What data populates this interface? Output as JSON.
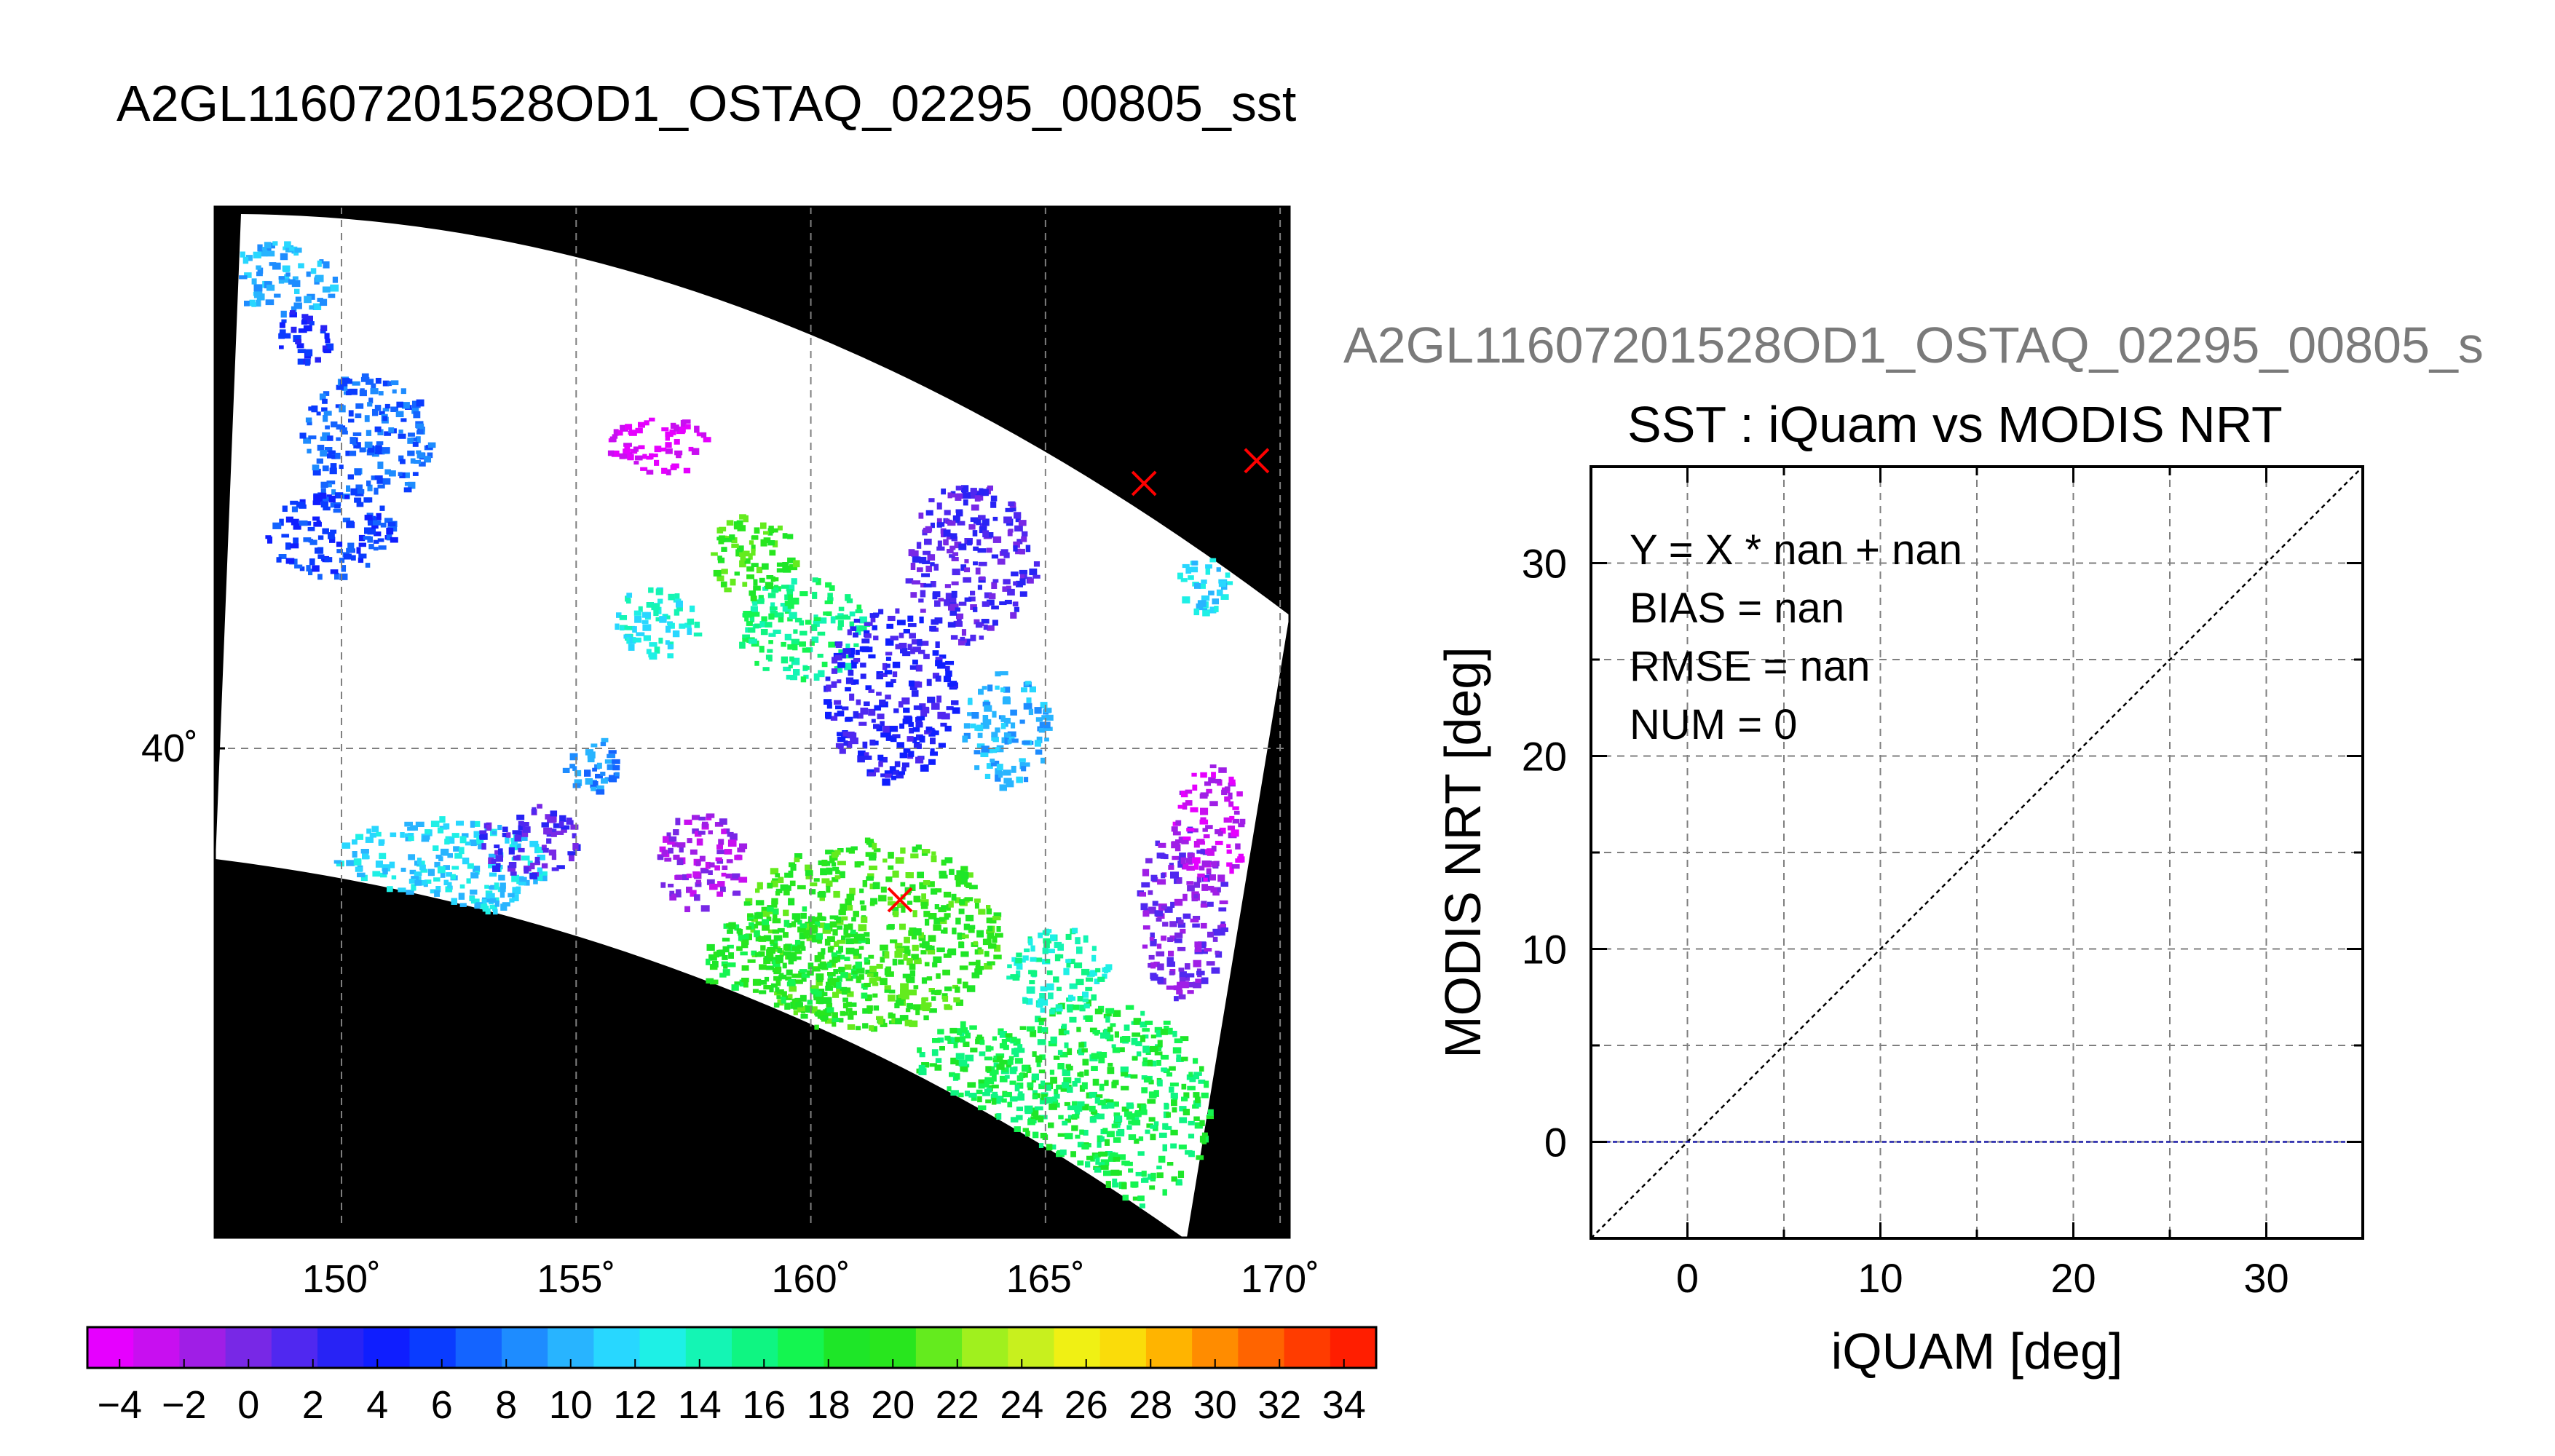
{
  "header": {
    "title": "A2GL11607201528OD1_OSTAQ_02295_00805_sst",
    "scatter_file_title": "A2GL11607201528OD1_OSTAQ_02295_00805_s"
  },
  "colors": {
    "swath_fill": "#ffffff",
    "no_data": "#000000",
    "marker": "#ff0000",
    "one_to_one_line": "#000000",
    "zero_line": "#1a1aa6",
    "grid": "#7f7f7f"
  },
  "chart_data": [
    {
      "type": "map",
      "xticks": [
        150,
        155,
        160,
        165,
        170
      ],
      "xtick_labels": [
        "150˚",
        "155˚",
        "160˚",
        "165˚",
        "170˚"
      ],
      "ytick_labels": [
        "40˚"
      ],
      "xlim": [
        147.3,
        170.2
      ],
      "grid": true,
      "markers": [
        {
          "lon": 167.1,
          "lat": 43.5
        },
        {
          "lon": 169.5,
          "lat": 43.8
        },
        {
          "lon": 161.9,
          "lat": 38.0
        }
      ],
      "colorbar": {
        "ticks": [
          -4,
          -2,
          0,
          2,
          4,
          6,
          8,
          10,
          12,
          14,
          16,
          18,
          20,
          22,
          24,
          26,
          28,
          30,
          32,
          34
        ],
        "tick_labels": [
          "−4",
          "−2",
          "0",
          "2",
          "4",
          "6",
          "8",
          "10",
          "12",
          "14",
          "16",
          "18",
          "20",
          "22",
          "24",
          "26",
          "28",
          "30",
          "32",
          "34"
        ],
        "range": [
          -5,
          35
        ],
        "colors": [
          "#e600ff",
          "#c80ff0",
          "#a01ee6",
          "#7828e6",
          "#5028f0",
          "#2823f5",
          "#0f1eff",
          "#0a3cff",
          "#1464ff",
          "#1e8cff",
          "#28b4ff",
          "#28d7ff",
          "#1ef0e6",
          "#14f5b4",
          "#0ff582",
          "#14f550",
          "#1ee628",
          "#28e61e",
          "#64eb1e",
          "#a0f01e",
          "#c8f01e",
          "#f0f014",
          "#fadc0a",
          "#ffb400",
          "#ff8c00",
          "#ff6400",
          "#ff3c00",
          "#ff1e00"
        ]
      }
    },
    {
      "type": "scatter",
      "title": "SST : iQuam vs MODIS NRT",
      "xlabel": "iQUAM [deg]",
      "ylabel": "MODIS NRT [deg]",
      "xlim": [
        -5,
        35
      ],
      "ylim": [
        -5,
        35
      ],
      "xticks": [
        0,
        10,
        20,
        30
      ],
      "yticks": [
        0,
        10,
        20,
        30
      ],
      "grid_step": 5,
      "grid": true,
      "annotations": [
        "Y = X * nan + nan",
        "BIAS = nan",
        "RMSE = nan",
        "NUM = 0"
      ],
      "lines": [
        {
          "kind": "one-to-one",
          "points": [
            [
              -5,
              -5
            ],
            [
              35,
              35
            ]
          ]
        },
        {
          "kind": "horizontal",
          "y": 0
        }
      ],
      "points": []
    }
  ]
}
